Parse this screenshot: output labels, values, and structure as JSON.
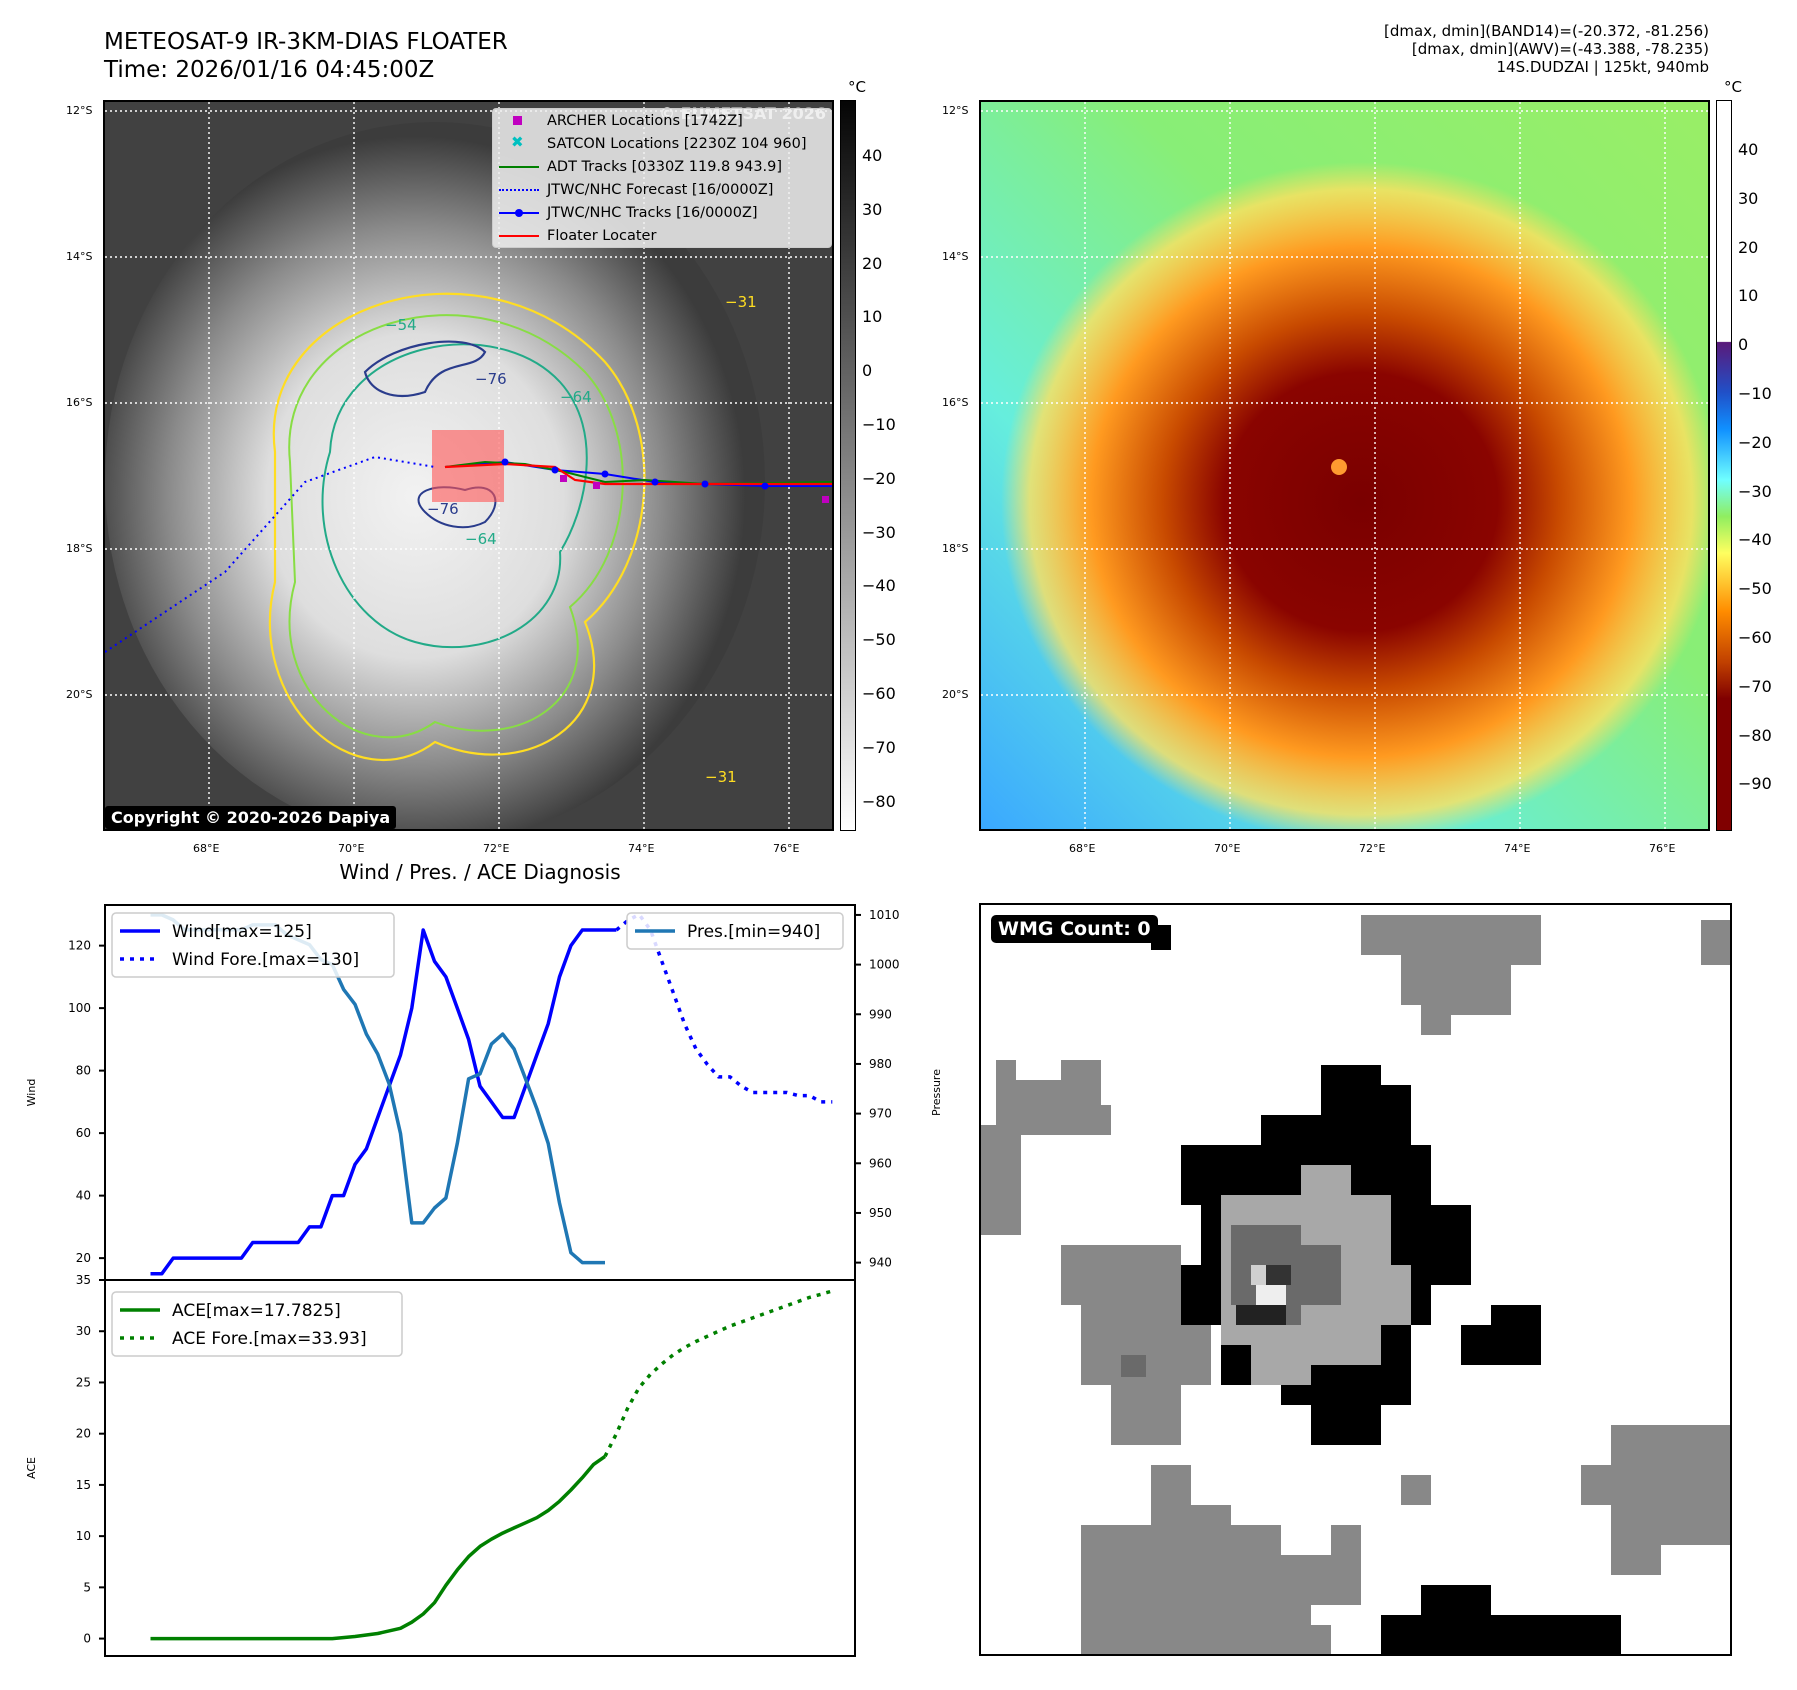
{
  "header": {
    "title_line1": "METEOSAT-9 IR-3KM-DIAS FLOATER",
    "title_line2": "Time: 2026/01/16 04:45:00Z",
    "right_line1": "[dmax, dmin](BAND14)=(-20.372, -81.256)",
    "right_line2": "[dmax, dmin](AWV)=(-43.388, -78.235)",
    "right_line3": "14S.DUDZAI | 125kt, 940mb"
  },
  "ir_panel": {
    "lat_ticks": [
      "12°S",
      "14°S",
      "16°S",
      "18°S",
      "20°S"
    ],
    "lon_ticks": [
      "68°E",
      "70°E",
      "72°E",
      "74°E",
      "76°E"
    ],
    "watermark": "© EUMETSAT 2026",
    "copyright": "Copyright © 2020-2026 Dapiya",
    "colorbar_unit": "°C",
    "colorbar_ticks": [
      "40",
      "30",
      "20",
      "10",
      "0",
      "−10",
      "−20",
      "−30",
      "−40",
      "−50",
      "−60",
      "−70",
      "−80"
    ],
    "contour_labels": [
      "−54",
      "−76",
      "−64",
      "−76",
      "−31",
      "−31",
      "−64"
    ],
    "legend": [
      {
        "label": "ARCHER Locations [1742Z]",
        "symbol": "square",
        "color": "#c000c0"
      },
      {
        "label": "SATCON Locations [2230Z 104 960]",
        "symbol": "x",
        "color": "#00c0c0"
      },
      {
        "label": "ADT Tracks [0330Z 119.8 943.9]",
        "symbol": "line",
        "color": "#008000"
      },
      {
        "label": "JTWC/NHC Forecast [16/0000Z]",
        "symbol": "dotted",
        "color": "#0000ff"
      },
      {
        "label": "JTWC/NHC Tracks [16/0000Z]",
        "symbol": "line-dot",
        "color": "#0000ff"
      },
      {
        "label": "Floater Locater",
        "symbol": "line",
        "color": "#ff0000"
      }
    ]
  },
  "awv_panel": {
    "lat_ticks": [
      "12°S",
      "14°S",
      "16°S",
      "18°S",
      "20°S"
    ],
    "lon_ticks": [
      "68°E",
      "70°E",
      "72°E",
      "74°E",
      "76°E"
    ],
    "colorbar_unit": "°C",
    "colorbar_ticks": [
      "40",
      "30",
      "20",
      "10",
      "0",
      "−10",
      "−20",
      "−30",
      "−40",
      "−50",
      "−60",
      "−70",
      "−80",
      "−90"
    ]
  },
  "wmg_panel": {
    "badge": "WMG Count: 0"
  },
  "chart_data": [
    {
      "type": "line",
      "title": "Wind / Pres. / ACE Diagnosis",
      "ylabel": "Wind",
      "y2label": "Pressure",
      "ylim": [
        13,
        133
      ],
      "y2lim": [
        936.5,
        1012
      ],
      "yticks": [
        "20",
        "40",
        "60",
        "80",
        "100",
        "120"
      ],
      "y2ticks": [
        "940",
        "950",
        "960",
        "970",
        "980",
        "990",
        "1000",
        "1010"
      ],
      "series": [
        {
          "name": "Wind[max=125]",
          "style": "solid",
          "color": "#0000ff",
          "x": [
            0,
            1,
            2,
            3,
            4,
            5,
            6,
            7,
            8,
            9,
            10,
            11,
            12,
            13,
            14,
            15,
            16,
            17,
            18,
            19,
            20,
            21,
            22,
            23,
            24,
            25,
            26,
            27,
            28,
            29,
            30,
            31,
            32,
            33,
            34,
            35,
            36,
            37,
            38,
            39,
            40,
            41
          ],
          "values": [
            15,
            15,
            20,
            20,
            20,
            20,
            20,
            20,
            20,
            25,
            25,
            25,
            25,
            25,
            30,
            30,
            40,
            40,
            50,
            55,
            65,
            75,
            85,
            100,
            125,
            115,
            110,
            100,
            90,
            75,
            70,
            65,
            65,
            75,
            85,
            95,
            110,
            120,
            125,
            125,
            125,
            125
          ]
        },
        {
          "name": "Wind Fore.[max=130]",
          "style": "dotted",
          "color": "#0000ff",
          "x": [
            41,
            42,
            43,
            44,
            45,
            46,
            47,
            48,
            49,
            50,
            51,
            52,
            53,
            54,
            55,
            56,
            57,
            58,
            59,
            60
          ],
          "values": [
            125,
            128,
            130,
            125,
            115,
            105,
            95,
            87,
            82,
            78,
            78,
            75,
            73,
            73,
            73,
            73,
            72,
            72,
            70,
            70
          ]
        },
        {
          "name": "Pres.[min=940]",
          "axis": "right",
          "style": "solid",
          "color": "#1f77b4",
          "x": [
            0,
            1,
            2,
            3,
            4,
            5,
            6,
            7,
            8,
            9,
            10,
            11,
            12,
            13,
            14,
            15,
            16,
            17,
            18,
            19,
            20,
            21,
            22,
            23,
            24,
            25,
            26,
            27,
            28,
            29,
            30,
            31,
            32,
            33,
            34,
            35,
            36,
            37,
            38,
            39,
            40
          ],
          "values": [
            1010,
            1010,
            1009,
            1007,
            1007,
            1007,
            1007,
            1007,
            1007,
            1008,
            1008,
            1008,
            1006,
            1005,
            1004,
            1001,
            1000,
            995,
            992,
            986,
            982,
            976,
            966,
            948,
            948,
            951,
            953,
            964,
            977,
            978,
            984,
            986,
            983,
            977,
            971,
            964,
            952,
            942,
            940,
            940,
            940
          ]
        }
      ]
    },
    {
      "type": "line",
      "ylabel": "ACE",
      "ylim": [
        -1.7,
        35
      ],
      "yticks": [
        "0",
        "5",
        "10",
        "15",
        "20",
        "25",
        "30",
        "35"
      ],
      "series": [
        {
          "name": "ACE[max=17.7825]",
          "style": "solid",
          "color": "#008000",
          "x": [
            0,
            2,
            4,
            6,
            8,
            10,
            12,
            14,
            16,
            18,
            20,
            22,
            23,
            24,
            25,
            26,
            27,
            28,
            29,
            30,
            31,
            32,
            33,
            34,
            35,
            36,
            37,
            38,
            39,
            40
          ],
          "values": [
            0,
            0,
            0,
            0,
            0,
            0,
            0,
            0,
            0,
            0.2,
            0.5,
            1,
            1.6,
            2.4,
            3.5,
            5.2,
            6.7,
            8,
            9,
            9.7,
            10.3,
            10.8,
            11.3,
            11.8,
            12.5,
            13.4,
            14.5,
            15.7,
            17,
            17.78
          ]
        },
        {
          "name": "ACE Fore.[max=33.93]",
          "style": "dotted",
          "color": "#008000",
          "x": [
            40,
            41,
            42,
            43,
            44,
            45,
            46,
            47,
            48,
            49,
            50,
            51,
            52,
            53,
            54,
            55,
            56,
            57,
            58,
            59,
            60
          ],
          "values": [
            17.78,
            20,
            22.5,
            24.5,
            25.8,
            26.8,
            27.7,
            28.4,
            29,
            29.5,
            30,
            30.5,
            30.9,
            31.3,
            31.7,
            32.1,
            32.5,
            32.9,
            33.3,
            33.6,
            33.93
          ]
        }
      ]
    }
  ]
}
